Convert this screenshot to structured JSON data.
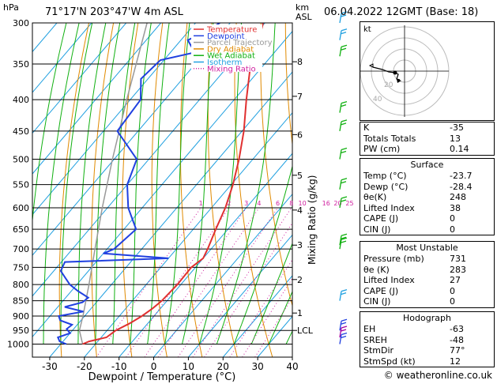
{
  "header": {
    "pressure_unit": "hPa",
    "location": "71°17'N  203°47'W  4m  ASL",
    "height_unit_km": "km",
    "height_unit_asl": "ASL",
    "datetime": "06.04.2022  12GMT  (Base: 18)"
  },
  "axes": {
    "xlabel": "Dewpoint / Temperature (°C)",
    "mixing_ratio_label": "Mixing Ratio (g/kg)"
  },
  "legend": [
    {
      "label": "Temperature",
      "color": "#e03030",
      "style": "solid"
    },
    {
      "label": "Dewpoint",
      "color": "#2040e0",
      "style": "solid"
    },
    {
      "label": "Parcel Trajectory",
      "color": "#999999",
      "style": "solid"
    },
    {
      "label": "Dry Adiabat",
      "color": "#e08a00",
      "style": "solid"
    },
    {
      "label": "Wet Adiabat",
      "color": "#10b010",
      "style": "solid"
    },
    {
      "label": "Isotherm",
      "color": "#20a0e0",
      "style": "solid"
    },
    {
      "label": "Mixing Ratio",
      "color": "#d020a0",
      "style": "dotted"
    }
  ],
  "chart_data": {
    "type": "skew-t",
    "pressure_levels": [
      300,
      350,
      400,
      450,
      500,
      550,
      600,
      650,
      700,
      750,
      800,
      850,
      900,
      950,
      1000
    ],
    "x_ticks": [
      -30,
      -20,
      -10,
      0,
      10,
      20,
      30,
      40
    ],
    "height_km_labels": [
      {
        "p": 347,
        "label": "8"
      },
      {
        "p": 395,
        "label": "7"
      },
      {
        "p": 456,
        "label": "6"
      },
      {
        "p": 531,
        "label": "5"
      },
      {
        "p": 605,
        "label": "4"
      },
      {
        "p": 690,
        "label": "3"
      },
      {
        "p": 785,
        "label": "2"
      },
      {
        "p": 890,
        "label": "1"
      },
      {
        "p": 950,
        "label": "LCL"
      }
    ],
    "mixing_ratio_labels": [
      "1",
      "2",
      "3",
      "4",
      "6",
      "8",
      "10",
      "16",
      "20",
      "25"
    ],
    "mixing_ratio_values": [
      1,
      2,
      3,
      4,
      6,
      8,
      10,
      16,
      20,
      25
    ],
    "temperature": [
      [
        1000,
        -23.7
      ],
      [
        990,
        -22.5
      ],
      [
        975,
        -18.5
      ],
      [
        950,
        -17.5
      ],
      [
        925,
        -15.2
      ],
      [
        900,
        -13.5
      ],
      [
        875,
        -12.3
      ],
      [
        850,
        -11.5
      ],
      [
        800,
        -11.0
      ],
      [
        750,
        -11.2
      ],
      [
        725,
        -10.0
      ],
      [
        700,
        -11.0
      ],
      [
        650,
        -13.5
      ],
      [
        600,
        -16.0
      ],
      [
        550,
        -19.5
      ],
      [
        500,
        -24.0
      ],
      [
        450,
        -29.5
      ],
      [
        400,
        -36.5
      ],
      [
        350,
        -44.0
      ],
      [
        320,
        -47.5
      ],
      [
        300,
        -50.5
      ]
    ],
    "dewpoint": [
      [
        1000,
        -28.4
      ],
      [
        990,
        -31.0
      ],
      [
        975,
        -32.5
      ],
      [
        960,
        -30.0
      ],
      [
        945,
        -32.0
      ],
      [
        930,
        -31.5
      ],
      [
        915,
        -36.0
      ],
      [
        900,
        -37.5
      ],
      [
        885,
        -31.5
      ],
      [
        870,
        -38.0
      ],
      [
        855,
        -34.0
      ],
      [
        840,
        -33.5
      ],
      [
        820,
        -38.0
      ],
      [
        800,
        -42.0
      ],
      [
        780,
        -45.0
      ],
      [
        760,
        -48.0
      ],
      [
        735,
        -49.0
      ],
      [
        725,
        -20.0
      ],
      [
        712,
        -40.0
      ],
      [
        700,
        -38.0
      ],
      [
        650,
        -36.5
      ],
      [
        600,
        -44.0
      ],
      [
        550,
        -50.0
      ],
      [
        500,
        -53.5
      ],
      [
        450,
        -66.0
      ],
      [
        400,
        -67.0
      ],
      [
        370,
        -72.0
      ],
      [
        345,
        -71.0
      ],
      [
        335,
        -63.0
      ],
      [
        320,
        -68.0
      ],
      [
        310,
        -65.0
      ],
      [
        300,
        -63.0
      ]
    ],
    "parcel": [
      [
        1000,
        -23.7
      ],
      [
        950,
        -28.0
      ],
      [
        900,
        -30.5
      ],
      [
        800,
        -36.5
      ],
      [
        700,
        -43.5
      ],
      [
        600,
        -51.5
      ],
      [
        500,
        -60.5
      ],
      [
        400,
        -71.0
      ],
      [
        300,
        -84.0
      ]
    ]
  },
  "wind_barbs": [
    {
      "p": 300,
      "color": "#20a0e0"
    },
    {
      "p": 320,
      "color": "#20a0e0"
    },
    {
      "p": 340,
      "color": "#10b010"
    },
    {
      "p": 420,
      "color": "#10b010"
    },
    {
      "p": 450,
      "color": "#10b010"
    },
    {
      "p": 500,
      "color": "#10b010"
    },
    {
      "p": 560,
      "color": "#10b010"
    },
    {
      "p": 600,
      "color": "#10b010"
    },
    {
      "p": 690,
      "color": "#10b010"
    },
    {
      "p": 700,
      "color": "#10b010"
    },
    {
      "p": 850,
      "color": "#20a0e0"
    },
    {
      "p": 950,
      "color": "#2040e0"
    },
    {
      "p": 975,
      "color": "#a000a0"
    },
    {
      "p": 1000,
      "color": "#2040e0"
    }
  ],
  "hodograph": {
    "unit_label": "kt",
    "ring_labels": [
      "20",
      "40"
    ]
  },
  "indices": [
    {
      "label": "K",
      "value": "-35"
    },
    {
      "label": "Totals Totals",
      "value": "13"
    },
    {
      "label": "PW (cm)",
      "value": "0.14"
    }
  ],
  "surface": {
    "title": "Surface",
    "rows": [
      {
        "label": "Temp (°C)",
        "value": "-23.7"
      },
      {
        "label": "Dewp (°C)",
        "value": "-28.4"
      },
      {
        "label": "θe(K)",
        "value": "248"
      },
      {
        "label": "Lifted Index",
        "value": "38"
      },
      {
        "label": "CAPE (J)",
        "value": "0"
      },
      {
        "label": "CIN (J)",
        "value": "0"
      }
    ]
  },
  "most_unstable": {
    "title": "Most Unstable",
    "rows": [
      {
        "label": "Pressure (mb)",
        "value": "731"
      },
      {
        "label": "θe (K)",
        "value": "283"
      },
      {
        "label": "Lifted Index",
        "value": "27"
      },
      {
        "label": "CAPE (J)",
        "value": "0"
      },
      {
        "label": "CIN (J)",
        "value": "0"
      }
    ]
  },
  "hodograph_stats": {
    "title": "Hodograph",
    "rows": [
      {
        "label": "EH",
        "value": "-63"
      },
      {
        "label": "SREH",
        "value": "-48"
      },
      {
        "label": "StmDir",
        "value": "77°"
      },
      {
        "label": "StmSpd (kt)",
        "value": "12"
      }
    ]
  },
  "footer": "© weatheronline.co.uk"
}
